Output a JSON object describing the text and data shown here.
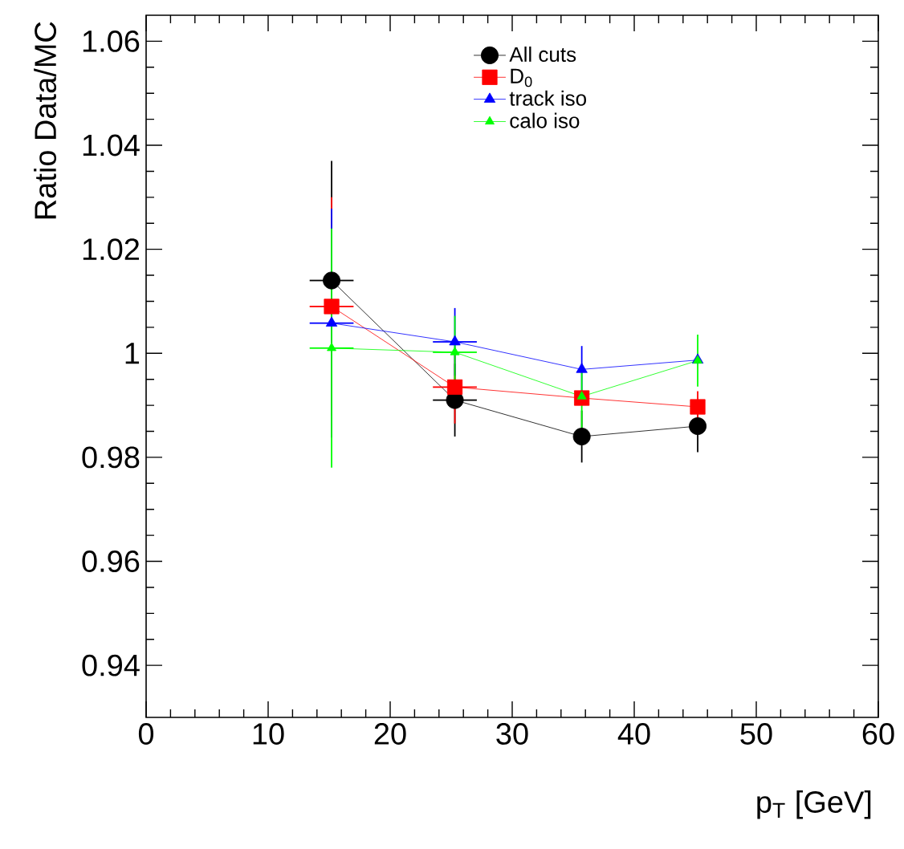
{
  "chart_data": {
    "type": "line",
    "xlabel": "p$_{T}$ [GeV]",
    "ylabel": "Ratio Data/MC",
    "x": [
      15.2,
      25.3,
      35.7,
      45.2
    ],
    "series": [
      {
        "name": "All cuts",
        "color": "#000000",
        "marker": "circle",
        "values": [
          1.014,
          0.991,
          0.984,
          0.986
        ],
        "errors": [
          0.023,
          0.007,
          0.005,
          0.005
        ],
        "xerrors": [
          1.8,
          1.8,
          null,
          null
        ]
      },
      {
        "name": "D$_{0}$",
        "color": "#ff0000",
        "marker": "square",
        "values": [
          1.009,
          0.9935,
          0.9914,
          0.9897
        ],
        "errors": [
          0.021,
          0.007,
          null,
          0.003
        ],
        "xerrors": [
          1.8,
          1.8,
          null,
          null
        ]
      },
      {
        "name": "track iso",
        "color": "#0000ff",
        "marker": "triangle",
        "values": [
          1.0058,
          1.0022,
          0.9969,
          0.9987
        ],
        "errors": [
          0.022,
          0.0065,
          0.0045,
          null
        ],
        "xerrors": [
          1.8,
          1.8,
          null,
          null
        ]
      },
      {
        "name": "calo iso",
        "color": "#00ff00",
        "marker": "triangle",
        "values": [
          1.001,
          1.0002,
          0.9917,
          0.9986
        ],
        "errors": [
          0.023,
          0.007,
          0.006,
          0.005
        ],
        "xerrors": [
          1.8,
          1.8,
          null,
          null
        ]
      }
    ],
    "xlim": [
      0,
      60
    ],
    "ylim": [
      0.93,
      1.065
    ],
    "xticks": [
      0,
      10,
      20,
      30,
      40,
      50,
      60
    ],
    "yticks": [
      0.94,
      0.96,
      0.98,
      1,
      1.02,
      1.04,
      1.06
    ],
    "legend": "top",
    "grid": false
  }
}
